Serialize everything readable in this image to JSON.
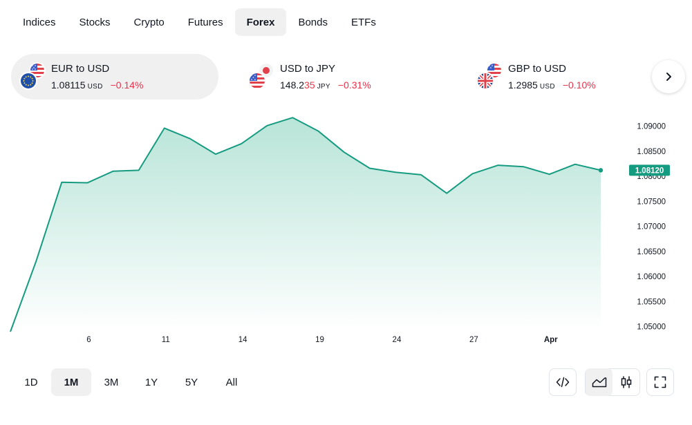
{
  "tabs": [
    {
      "label": "Indices",
      "active": false
    },
    {
      "label": "Stocks",
      "active": false
    },
    {
      "label": "Crypto",
      "active": false
    },
    {
      "label": "Futures",
      "active": false
    },
    {
      "label": "Forex",
      "active": true
    },
    {
      "label": "Bonds",
      "active": false
    },
    {
      "label": "ETFs",
      "active": false
    }
  ],
  "pairs": [
    {
      "name": "EUR to USD",
      "price_main": "1.08115",
      "price_tail": "",
      "unit": "USD",
      "change": "−0.14%",
      "active": true,
      "flags": [
        "us-flag-icon",
        "eu-flag-icon"
      ]
    },
    {
      "name": "USD to JPY",
      "price_main": "148.2",
      "price_tail": "35",
      "unit": "JPY",
      "change": "−0.31%",
      "active": false,
      "flags": [
        "jp-flag-icon",
        "us-flag-icon"
      ]
    },
    {
      "name": "GBP to USD",
      "price_main": "1.2985",
      "price_tail": "",
      "unit": "USD",
      "change": "−0.10%",
      "active": false,
      "flags": [
        "us-flag-icon",
        "uk-flag-icon"
      ]
    }
  ],
  "colors": {
    "line": "#159b80",
    "area_top": "#b5e3d6",
    "negative": "#e8304a",
    "badge": "#159b80"
  },
  "chart_data": {
    "type": "area",
    "series": [
      {
        "values": [
          1.049,
          1.063,
          1.0788,
          1.0787,
          1.081,
          1.0812,
          1.0896,
          1.0875,
          1.0844,
          1.0865,
          1.0901,
          1.0917,
          1.089,
          1.0848,
          1.0816,
          1.0808,
          1.0803,
          1.0766,
          1.0805,
          1.0822,
          1.0819,
          1.0804,
          1.0824,
          1.0812
        ]
      }
    ],
    "x_tick_labels": [
      {
        "label": "6",
        "index": 3,
        "bold": false
      },
      {
        "label": "11",
        "index": 6,
        "bold": false
      },
      {
        "label": "14",
        "index": 9,
        "bold": false
      },
      {
        "label": "19",
        "index": 12,
        "bold": false
      },
      {
        "label": "24",
        "index": 15,
        "bold": false
      },
      {
        "label": "27",
        "index": 18,
        "bold": false
      },
      {
        "label": "Apr",
        "index": 21,
        "bold": true
      }
    ],
    "y_ticks": [
      "1.09000",
      "1.08500",
      "1.08000",
      "1.07500",
      "1.07000",
      "1.06500",
      "1.06000",
      "1.05500",
      "1.05000"
    ],
    "ylim": [
      1.049,
      1.092
    ],
    "last_value_label": "1.08120",
    "grid": false
  },
  "ranges": [
    {
      "label": "1D",
      "active": false
    },
    {
      "label": "1M",
      "active": true
    },
    {
      "label": "3M",
      "active": false
    },
    {
      "label": "1Y",
      "active": false
    },
    {
      "label": "5Y",
      "active": false
    },
    {
      "label": "All",
      "active": false
    }
  ],
  "tools": {
    "embed": "code-icon",
    "area": "area-chart-icon",
    "candles": "candlestick-icon",
    "fullscreen": "fullscreen-icon",
    "next": "chevron-right-icon"
  }
}
